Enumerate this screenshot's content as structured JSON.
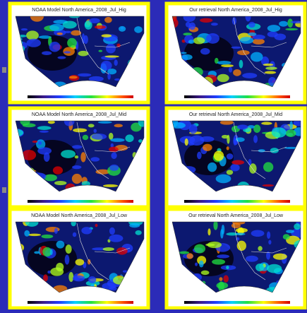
{
  "panels": [
    {
      "title": "NOAA Model North America_2008_Jul_Hig"
    },
    {
      "title": "Our retrieval North America_2008_Jul_Hig"
    },
    {
      "title": "NOAA Model North America_2008_Jul_Mid"
    },
    {
      "title": "Our retrieval North America_2008_Jul_Mid"
    },
    {
      "title": "NOAA Model North America_2008_Jul_Low"
    },
    {
      "title": "Our retrieval North America_2008_Jul_Low"
    }
  ]
}
